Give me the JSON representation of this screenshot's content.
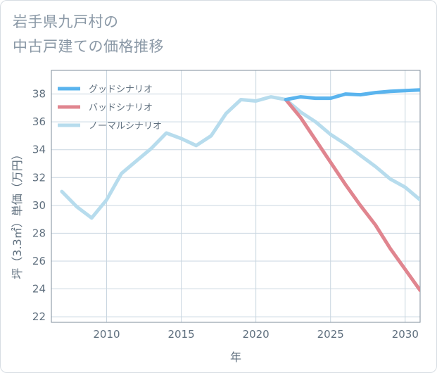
{
  "title_line1": "岩手県九戸村の",
  "title_line2": "中古戸建ての価格推移",
  "chart_data": {
    "type": "line",
    "xlabel": "年",
    "ylabel": "坪（3.3㎡）単価（万円）",
    "xlim": [
      2006.3,
      2031
    ],
    "ylim": [
      21.6,
      39.7
    ],
    "xticks": [
      2010,
      2015,
      2020,
      2025,
      2030
    ],
    "yticks": [
      22,
      24,
      26,
      28,
      30,
      32,
      34,
      36,
      38
    ],
    "grid": true,
    "legend_position": "top-left",
    "series": [
      {
        "name": "グッドシナリオ",
        "color": "#5ab4ee",
        "x": [
          2022,
          2023,
          2024,
          2025,
          2026,
          2027,
          2028,
          2029,
          2030,
          2031
        ],
        "y": [
          37.6,
          37.8,
          37.7,
          37.7,
          38.0,
          37.95,
          38.1,
          38.2,
          38.25,
          38.3
        ]
      },
      {
        "name": "バッドシナリオ",
        "color": "#e0858f",
        "x": [
          2022,
          2023,
          2024,
          2025,
          2026,
          2027,
          2028,
          2029,
          2030,
          2031
        ],
        "y": [
          37.6,
          36.3,
          34.7,
          33.1,
          31.5,
          30.0,
          28.6,
          26.9,
          25.4,
          23.9
        ]
      },
      {
        "name": "ノーマルシナリオ",
        "color": "#b7dced",
        "x": [
          2007,
          2008,
          2009,
          2010,
          2011,
          2012,
          2013,
          2014,
          2015,
          2016,
          2017,
          2018,
          2019,
          2020,
          2021,
          2022,
          2023,
          2024,
          2025,
          2026,
          2027,
          2028,
          2029,
          2030,
          2031
        ],
        "y": [
          31.0,
          29.9,
          29.1,
          30.4,
          32.3,
          33.2,
          34.1,
          35.2,
          34.8,
          34.3,
          35.0,
          36.6,
          37.6,
          37.5,
          37.8,
          37.6,
          36.7,
          36.0,
          35.1,
          34.4,
          33.6,
          32.8,
          31.9,
          31.3,
          30.4
        ]
      }
    ]
  }
}
